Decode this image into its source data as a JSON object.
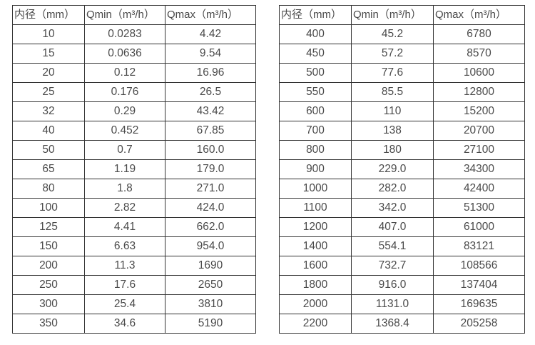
{
  "tables": [
    {
      "headers": [
        "内径（mm）",
        "Qmin（m³/h）",
        "Qmax（m³/h）"
      ],
      "rows": [
        [
          "10",
          "0.0283",
          "4.42"
        ],
        [
          "15",
          "0.0636",
          "9.54"
        ],
        [
          "20",
          "0.12",
          "16.96"
        ],
        [
          "25",
          "0.176",
          "26.5"
        ],
        [
          "32",
          "0.29",
          "43.42"
        ],
        [
          "40",
          "0.452",
          "67.85"
        ],
        [
          "50",
          "0.7",
          "160.0"
        ],
        [
          "65",
          "1.19",
          "179.0"
        ],
        [
          "80",
          "1.8",
          "271.0"
        ],
        [
          "100",
          "2.82",
          "424.0"
        ],
        [
          "125",
          "4.41",
          "662.0"
        ],
        [
          "150",
          "6.63",
          "954.0"
        ],
        [
          "200",
          "11.3",
          "1690"
        ],
        [
          "250",
          "17.6",
          "2650"
        ],
        [
          "300",
          "25.4",
          "3810"
        ],
        [
          "350",
          "34.6",
          "5190"
        ]
      ]
    },
    {
      "headers": [
        "内径（mm）",
        "Qmin（m³/h）",
        "Qmax（m³/h）"
      ],
      "rows": [
        [
          "400",
          "45.2",
          "6780"
        ],
        [
          "450",
          "57.2",
          "8570"
        ],
        [
          "500",
          "77.6",
          "10600"
        ],
        [
          "550",
          "85.5",
          "12800"
        ],
        [
          "600",
          "110",
          "15200"
        ],
        [
          "700",
          "138",
          "20700"
        ],
        [
          "800",
          "180",
          "27100"
        ],
        [
          "900",
          "229.0",
          "34300"
        ],
        [
          "1000",
          "282.0",
          "42400"
        ],
        [
          "1100",
          "342.0",
          "51300"
        ],
        [
          "1200",
          "407.0",
          "61000"
        ],
        [
          "1400",
          "554.1",
          "83121"
        ],
        [
          "1600",
          "732.7",
          "108566"
        ],
        [
          "1800",
          "916.0",
          "137404"
        ],
        [
          "2000",
          "1131.0",
          "169635"
        ],
        [
          "2200",
          "1368.4",
          "205258"
        ]
      ]
    }
  ]
}
